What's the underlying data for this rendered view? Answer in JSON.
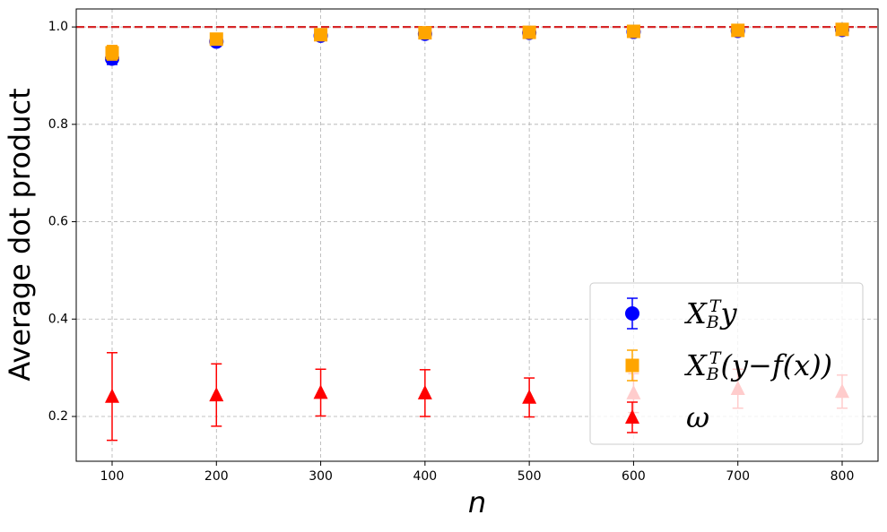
{
  "chart_data": {
    "type": "errorbar",
    "x_label": "n",
    "y_label": "Average dot product",
    "x": [
      100,
      200,
      300,
      400,
      500,
      600,
      700,
      800
    ],
    "series": [
      {
        "name": "X_B^T y",
        "color": "#0000ff",
        "marker": "circle",
        "values": [
          0.935,
          0.97,
          0.982,
          0.986,
          0.988,
          0.99,
          0.992,
          0.994
        ],
        "errors": [
          0.012,
          0.006,
          0.005,
          0.004,
          0.003,
          0.003,
          0.002,
          0.002
        ]
      },
      {
        "name": "X_B^T(y − f(x))",
        "color": "#ffa500",
        "marker": "square",
        "values": [
          0.947,
          0.975,
          0.984,
          0.988,
          0.989,
          0.991,
          0.993,
          0.995
        ],
        "errors": [
          0.015,
          0.008,
          0.006,
          0.005,
          0.004,
          0.003,
          0.003,
          0.002
        ]
      },
      {
        "name": "ω",
        "color": "#ff0000",
        "marker": "triangle",
        "values": [
          0.241,
          0.244,
          0.249,
          0.248,
          0.239,
          0.248,
          0.257,
          0.251
        ],
        "errors": [
          0.09,
          0.064,
          0.048,
          0.048,
          0.04,
          0.04,
          0.04,
          0.034
        ]
      }
    ],
    "reference_line": {
      "value": 1.0,
      "color": "#d62728"
    },
    "xlim": [
      65.6,
      834.4
    ],
    "ylim": [
      0.108,
      1.037
    ],
    "xticks": [
      100,
      200,
      300,
      400,
      500,
      600,
      700,
      800
    ],
    "yticks": [
      {
        "value": 0.2,
        "label": "0.2"
      },
      {
        "value": 0.4,
        "label": "0.4"
      },
      {
        "value": 0.6,
        "label": "0.6"
      },
      {
        "value": 0.8,
        "label": "0.8"
      },
      {
        "value": 1.0,
        "label": "1.0"
      }
    ],
    "grid": true,
    "legend": "lower right"
  }
}
